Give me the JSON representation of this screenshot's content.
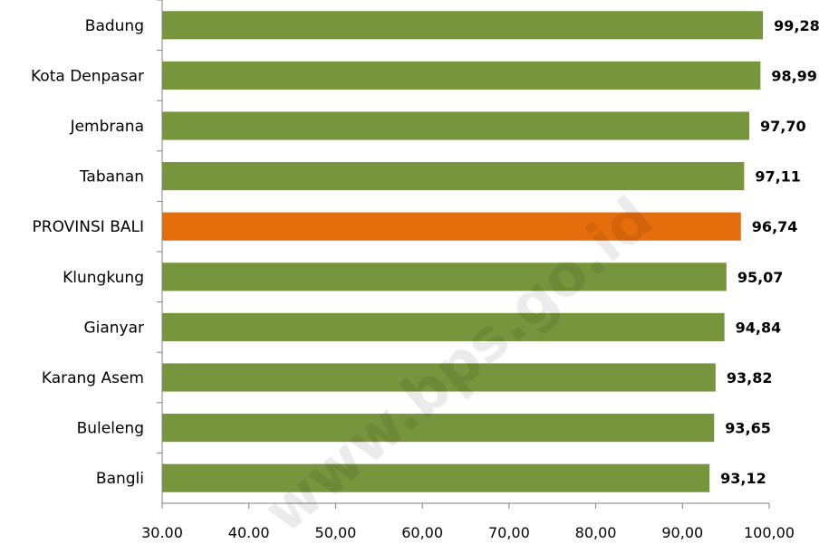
{
  "chart_data": {
    "type": "bar",
    "orientation": "horizontal",
    "categories": [
      "Badung",
      "Kota Denpasar",
      "Jembrana",
      "Tabanan",
      "PROVINSI BALI",
      "Klungkung",
      "Gianyar",
      "Karang Asem",
      "Buleleng",
      "Bangli"
    ],
    "values": [
      99.28,
      98.99,
      97.7,
      97.11,
      96.74,
      95.07,
      94.84,
      93.82,
      93.65,
      93.12
    ],
    "value_labels": [
      "99,28",
      "98,99",
      "97,70",
      "97,11",
      "96,74",
      "95,07",
      "94,84",
      "93,82",
      "93,65",
      "93,12"
    ],
    "xlim": [
      30,
      100
    ],
    "xticks": [
      30,
      40,
      50,
      60,
      70,
      80,
      90,
      100
    ],
    "xtick_labels": [
      "30.00",
      "40.00",
      "50,00",
      "60,00",
      "70,00",
      "80,00",
      "90,00",
      "100,00"
    ],
    "colors": {
      "default": "#77953c",
      "highlight": "#e56d0c",
      "axis": "#7f7f7f"
    },
    "highlight_category": "PROVINSI BALI",
    "grid": false,
    "legend": "none",
    "title": "",
    "xlabel": "",
    "ylabel": ""
  },
  "watermark": "www.bps.go.id"
}
